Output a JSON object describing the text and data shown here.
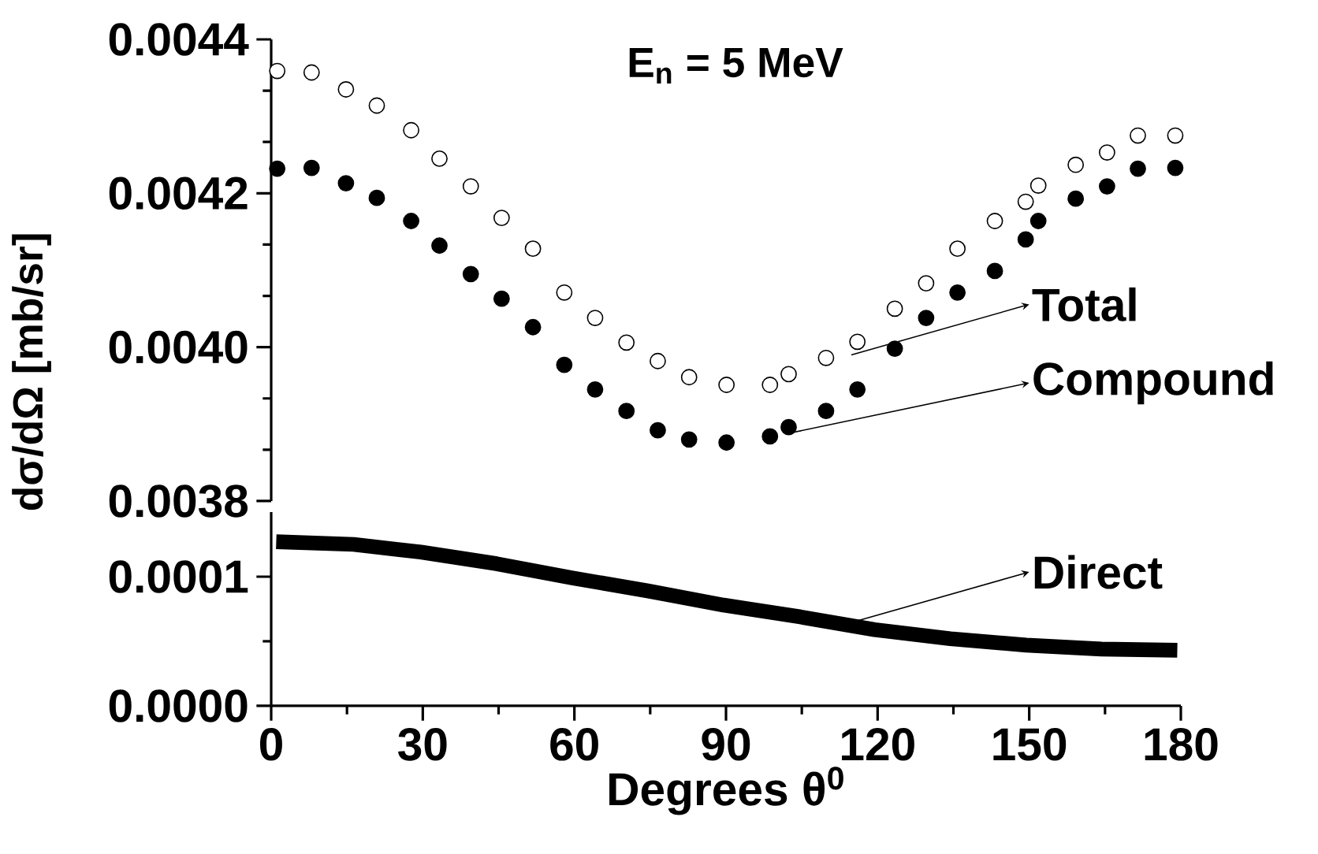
{
  "chart_data": [
    {
      "type": "scatter",
      "title": "E$_{n}$ = 5 MeV",
      "ylabel": "dσ/dΩ [mb/sr]",
      "marker": "circle",
      "tick_labels": "y",
      "x": [
        1.2,
        8.0,
        14.8,
        20.9,
        27.7,
        33.3,
        39.5,
        45.6,
        51.8,
        58.0,
        64.1,
        70.3,
        76.5,
        82.7,
        90.1,
        98.7,
        102.4,
        109.8,
        116.0,
        123.4,
        129.6,
        135.8,
        143.2,
        149.3,
        151.8,
        159.2,
        165.4,
        171.5,
        178.9
      ],
      "series": [
        {
          "color": "#ffffff",
          "values": [
            0.004359,
            0.004357,
            0.004335,
            0.004314,
            0.004282,
            0.004245,
            0.004209,
            0.004168,
            0.004128,
            0.004071,
            0.004038,
            0.004006,
            0.003982,
            0.003961,
            0.003951,
            0.003951,
            0.003965,
            0.003986,
            0.004007,
            0.00405,
            0.004083,
            0.004128,
            0.004164,
            0.004189,
            0.00421,
            0.004237,
            0.004253,
            0.004275,
            0.004275
          ]
        },
        {
          "color": "#000000",
          "values": [
            0.004232,
            0.004233,
            0.004213,
            0.004194,
            0.004164,
            0.004132,
            0.004095,
            0.004063,
            0.004026,
            0.003977,
            0.003945,
            0.003917,
            0.003892,
            0.00388,
            0.003876,
            0.003884,
            0.003896,
            0.003917,
            0.003945,
            0.003998,
            0.004038,
            0.004071,
            0.004099,
            0.00414,
            0.004164,
            0.004193,
            0.004209,
            0.004232,
            0.004233
          ]
        }
      ],
      "xlim": [
        0,
        180
      ],
      "ylim": [
        0.0038,
        0.0044
      ],
      "yticks": [
        0.0038,
        {
          "value": 0.004,
          "label": "0.0040"
        },
        0.0042,
        0.0044
      ],
      "annotations": [
        {
          "text": "Total",
          "x": 114.8,
          "y": 0.00399
        },
        {
          "text": "Compound",
          "x": 102.4,
          "y": 0.003888
        }
      ]
    },
    {
      "type": "line",
      "xlabel": "Degrees θ$^{0}$",
      "x": [
        1,
        16.3,
        29.6,
        44.6,
        59.6,
        74.5,
        89.5,
        104.5,
        119.4,
        134.4,
        149.4,
        164.3,
        179.3
      ],
      "series": [
        {
          "color": "#000000",
          "values": [
            0.000127,
            0.000125,
            0.000119,
            0.00011,
            9.9e-05,
            8.9e-05,
            7.8e-05,
            6.9e-05,
            5.9e-05,
            5.2e-05,
            4.7e-05,
            4.4e-05,
            4.3e-05
          ]
        }
      ],
      "xlim": [
        0,
        180
      ],
      "ylim": [
        0,
        0.00015
      ],
      "xticks": [
        0,
        30,
        60,
        90,
        120,
        150,
        180
      ],
      "yticks": [
        {
          "value": 0,
          "label": "0.0000"
        },
        {
          "value": 0.0001,
          "label": "0.0001"
        }
      ],
      "annotations": [
        {
          "text": "Direct",
          "x": 114.9,
          "y": 6.46e-05
        }
      ]
    }
  ]
}
